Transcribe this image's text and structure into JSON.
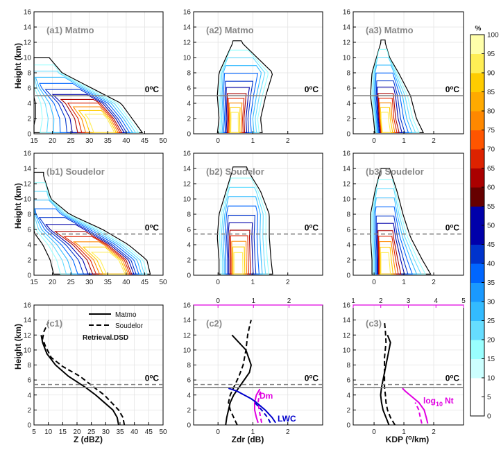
{
  "colors": {
    "matmo_line": "#000000",
    "soudelor_line": "#000000",
    "freezing_matmo": "#808080",
    "freezing_soudelor": "#808080",
    "magenta": "#e100e1",
    "blue": "#0000cc",
    "title_gray": "#888888",
    "colormap": [
      "#ffffff",
      "#ccffff",
      "#99ffff",
      "#66ddff",
      "#33bbff",
      "#1a99ff",
      "#0066ff",
      "#0033cc",
      "#0000aa",
      "#660000",
      "#aa0000",
      "#dd2200",
      "#ff5500",
      "#ff8800",
      "#ffaa00",
      "#ffcc00",
      "#ffee55",
      "#ffffaa"
    ]
  },
  "colorbar": {
    "title": "%",
    "labels": [
      "0",
      "5",
      "10",
      "15",
      "20",
      "25",
      "30",
      "35",
      "40",
      "45",
      "50",
      "55",
      "60",
      "65",
      "70",
      "75",
      "80",
      "85",
      "90",
      "95",
      "100"
    ]
  },
  "axes": {
    "y_label": "Height (km)",
    "y_ticks": [
      "0",
      "2",
      "4",
      "6",
      "8",
      "10",
      "12",
      "14",
      "16"
    ],
    "ylim": [
      0,
      16
    ],
    "z_ticks": [
      "15",
      "20",
      "25",
      "30",
      "35",
      "40",
      "45",
      "50"
    ],
    "z_ticks_c1": [
      "5",
      "10",
      "15",
      "20",
      "25",
      "30",
      "35",
      "40",
      "45",
      "50"
    ],
    "zdr_ticks": [
      "0",
      "1",
      "2"
    ],
    "kdp_ticks": [
      "0",
      "1",
      "2"
    ],
    "x_label_z": "Z (dBZ)",
    "x_label_zdr": "Zdr (dB)",
    "x_label_kdp": "KDP (",
    "x_label_kdp_sup": "o",
    "x_label_kdp_tail": "/km)",
    "freezing_label": "0",
    "freezing_sup": "o",
    "freezing_unit": "C"
  },
  "panels": {
    "a1": "(a1) Matmo",
    "a2": "(a2) Matmo",
    "a3": "(a3) Matmo",
    "b1": "(b1) Soudelor",
    "b2": "(b2) Soudelor",
    "b3": "(b3) Soudelor",
    "c1": "(c1)",
    "c2": "(c2)",
    "c3": "(c3)"
  },
  "legend": {
    "matmo": "Matmo",
    "soudelor": "Soudelor",
    "retrieval": "Retrieval.DSD"
  },
  "top_axes": {
    "dm_ticks": [
      "0",
      "1",
      "2"
    ],
    "nt_ticks": [
      "1",
      "2",
      "3",
      "4",
      "5"
    ]
  },
  "labels": {
    "dm": "Dm",
    "lwc": "LWC",
    "log": "log",
    "log_sub": "10",
    "nt": "Nt"
  },
  "chart_data": [
    {
      "type": "line",
      "panel": "c1",
      "xlabel": "Z (dBZ)",
      "ylabel": "Height (km)",
      "xlim": [
        5,
        50
      ],
      "ylim": [
        0,
        16
      ],
      "series": [
        {
          "name": "Matmo",
          "style": "solid",
          "x": [
            34.5,
            34.0,
            32.5,
            29.5,
            26.5,
            23.0,
            17.0,
            12.5,
            9.5,
            8.0,
            7.5
          ],
          "y": [
            0,
            1,
            2,
            3,
            4,
            5,
            6.5,
            8,
            9.5,
            11,
            12
          ]
        },
        {
          "name": "Soudelor",
          "style": "dashed",
          "x": [
            36.5,
            36.0,
            34.5,
            32.0,
            29.5,
            26.0,
            21.0,
            15.0,
            11.0,
            9.0,
            8.0,
            8.5,
            10.0
          ],
          "y": [
            0,
            1,
            2,
            3,
            4,
            5,
            6.5,
            7.8,
            9,
            10.5,
            11.5,
            12.5,
            13.7
          ]
        }
      ],
      "freezing_level": {
        "Matmo": 5.0,
        "Soudelor": 5.4
      }
    },
    {
      "type": "line",
      "panel": "c2",
      "xlabel": "Zdr (dB)",
      "ylabel": "Height (km)",
      "xlim": [
        -0.7,
        3.0
      ],
      "ylim": [
        0,
        16
      ],
      "series": [
        {
          "name": "Matmo",
          "style": "solid",
          "x": [
            0.22,
            0.25,
            0.3,
            0.35,
            0.45,
            0.6,
            0.75,
            0.9,
            0.95,
            0.8,
            0.5,
            0.4
          ],
          "y": [
            0,
            1,
            2,
            3,
            4,
            5,
            6,
            7,
            8,
            10,
            11.5,
            12
          ]
        },
        {
          "name": "Soudelor",
          "style": "dashed",
          "x": [
            0.55,
            0.45,
            0.35,
            0.3,
            0.35,
            0.45,
            0.6,
            0.72,
            0.8,
            0.85,
            0.92,
            0.95
          ],
          "y": [
            0,
            1,
            2,
            3,
            4,
            5,
            6.5,
            8,
            10,
            12,
            13.5,
            14
          ]
        }
      ],
      "retrieval": [
        {
          "name": "Dm",
          "style": "solid",
          "x": [
            1.15,
            1.1,
            1.05,
            1.05,
            1.1,
            1.2
          ],
          "y": [
            0.3,
            1,
            2,
            3,
            4,
            4.8
          ]
        },
        {
          "name": "Dm",
          "style": "dashed",
          "x": [
            1.25,
            1.22,
            1.18,
            1.15,
            1.18,
            1.25
          ],
          "y": [
            0.3,
            1,
            2,
            3,
            4,
            4.8
          ]
        },
        {
          "name": "LWC",
          "style": "solid",
          "x": [
            1.65,
            1.55,
            1.35,
            1.1,
            0.95,
            0.75,
            0.55,
            0.3
          ],
          "y": [
            0.3,
            1,
            2,
            3,
            3.5,
            4,
            4.5,
            4.9
          ]
        },
        {
          "name": "LWC",
          "style": "dashed",
          "x": [
            1.5,
            1.42,
            1.25,
            1.05
          ],
          "y": [
            0.3,
            1,
            2,
            3
          ]
        }
      ],
      "top_axis": {
        "ticks": [
          "0",
          "1",
          "2"
        ]
      },
      "freezing_level": {
        "Matmo": 5.0,
        "Soudelor": 5.4
      }
    },
    {
      "type": "line",
      "panel": "c3",
      "xlabel": "KDP (o/km)",
      "ylabel": "Height (km)",
      "xlim": [
        -0.7,
        3.0
      ],
      "ylim": [
        0,
        16
      ],
      "series": [
        {
          "name": "Matmo",
          "style": "solid",
          "x": [
            0.5,
            0.4,
            0.3,
            0.25,
            0.22,
            0.25,
            0.35,
            0.45,
            0.55,
            0.5,
            0.45
          ],
          "y": [
            0,
            1,
            2,
            3,
            4,
            5,
            7,
            9,
            11,
            11.5,
            12
          ]
        },
        {
          "name": "Soudelor",
          "style": "dashed",
          "x": [
            0.7,
            0.55,
            0.45,
            0.4,
            0.38,
            0.35,
            0.35,
            0.35,
            0.4,
            0.38,
            0.35
          ],
          "y": [
            0,
            1,
            2,
            3,
            4,
            5,
            7,
            9,
            11,
            12.5,
            13.7
          ]
        }
      ],
      "retrieval": [
        {
          "name": "log10 Nt",
          "style": "solid",
          "x": [
            1.8,
            1.75,
            1.68,
            1.5,
            1.2,
            1.05,
            0.95
          ],
          "y": [
            0.2,
            1,
            2,
            3,
            4,
            4.5,
            4.9
          ]
        },
        {
          "name": "log10 Nt",
          "style": "dashed",
          "x": [
            1.6,
            1.55,
            1.5,
            1.38
          ],
          "y": [
            0.2,
            1,
            2,
            3
          ]
        }
      ],
      "top_axis": {
        "ticks": [
          "1",
          "2",
          "3",
          "4",
          "5"
        ]
      },
      "freezing_level": {
        "Matmo": 5.0,
        "Soudelor": 5.4
      }
    }
  ]
}
